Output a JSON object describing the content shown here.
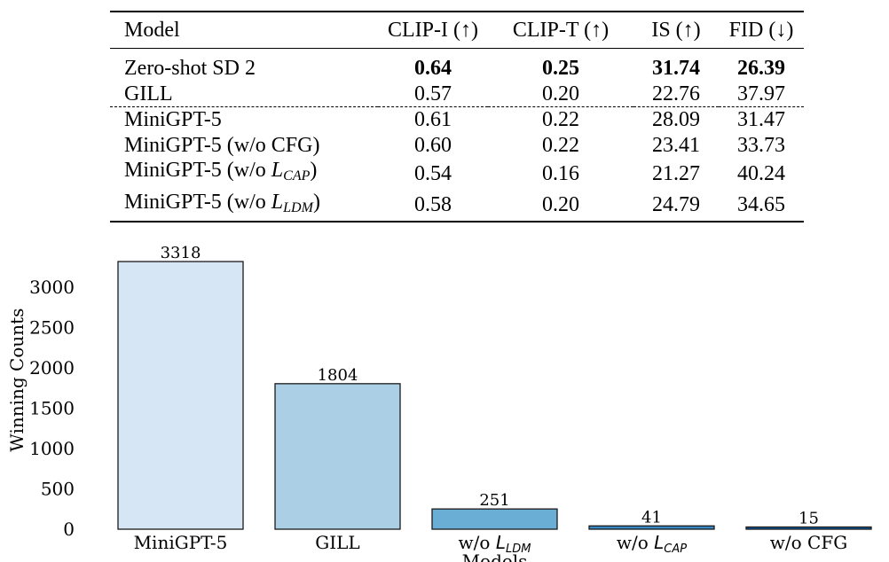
{
  "table": {
    "headers": [
      "Model",
      "CLIP-I (↑)",
      "CLIP-T (↑)",
      "IS (↑)",
      "FID (↓)"
    ],
    "rows": [
      {
        "model": "Zero-shot SD 2",
        "values": [
          "0.64",
          "0.25",
          "31.74",
          "26.39"
        ],
        "bold": true
      },
      {
        "model": "GILL",
        "values": [
          "0.57",
          "0.20",
          "22.76",
          "37.97"
        ],
        "bold": false
      },
      {
        "model": "MiniGPT-5",
        "values": [
          "0.61",
          "0.22",
          "28.09",
          "31.47"
        ],
        "bold": false
      },
      {
        "model": "MiniGPT-5 (w/o CFG)",
        "values": [
          "0.60",
          "0.22",
          "23.41",
          "33.73"
        ],
        "bold": false
      },
      {
        "model_prefix": "MiniGPT-5 (w/o ",
        "model_var": "L",
        "model_sub": "CAP",
        "model_suffix": ")",
        "values": [
          "0.54",
          "0.16",
          "21.27",
          "40.24"
        ],
        "bold": false
      },
      {
        "model_prefix": "MiniGPT-5 (w/o ",
        "model_var": "L",
        "model_sub": "LDM",
        "model_suffix": ")",
        "values": [
          "0.58",
          "0.20",
          "24.79",
          "34.65"
        ],
        "bold": false
      }
    ]
  },
  "chart_data": {
    "type": "bar",
    "categories": [
      {
        "text": "MiniGPT-5",
        "var": "",
        "sub": ""
      },
      {
        "text": "GILL",
        "var": "",
        "sub": ""
      },
      {
        "text": "w/o ",
        "var": "L",
        "sub": "LDM"
      },
      {
        "text": "w/o ",
        "var": "L",
        "sub": "CAP"
      },
      {
        "text": "w/o CFG",
        "var": "",
        "sub": ""
      }
    ],
    "values": [
      3318,
      1804,
      251,
      41,
      15
    ],
    "data_labels": [
      "3318",
      "1804",
      "251",
      "41",
      "15"
    ],
    "colors": [
      "#d6e6f4",
      "#abd0e6",
      "#6aaed6",
      "#3787c0",
      "#105ba4"
    ],
    "edge_color": "#1a1a1a",
    "xlabel": "Models",
    "ylabel": "Winning Counts",
    "yticks": [
      0,
      500,
      1000,
      1500,
      2000,
      2500,
      3000
    ],
    "ylim": [
      0,
      3484
    ],
    "grid": false,
    "legend": "none"
  }
}
